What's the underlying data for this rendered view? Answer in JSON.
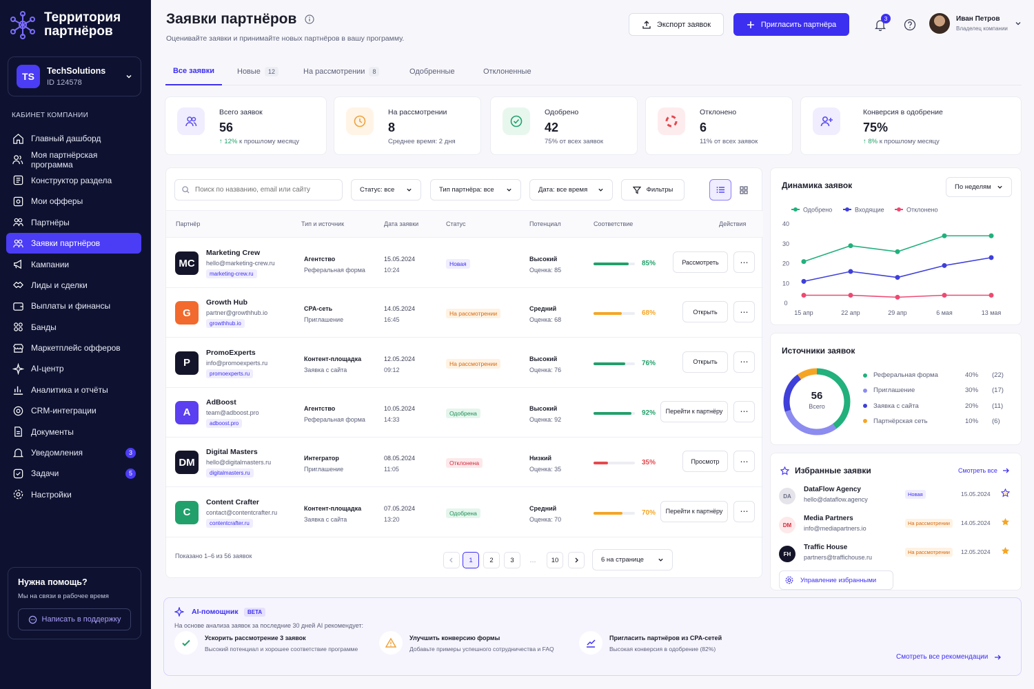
{
  "brand": {
    "line1": "Территория",
    "line2": "партнёров"
  },
  "company": {
    "initials": "TS",
    "name": "TechSolutions",
    "id": "ID 124578"
  },
  "sidebar": {
    "section_title": "КАБИНЕТ КОМПАНИИ",
    "items": [
      {
        "label": "Главный дашборд",
        "icon": "home-icon"
      },
      {
        "label": "Моя партнёрская программа",
        "icon": "users-icon"
      },
      {
        "label": "Конструктор раздела",
        "icon": "layout-icon"
      },
      {
        "label": "Мои офферы",
        "icon": "offer-icon"
      },
      {
        "label": "Партнёры",
        "icon": "partners-icon"
      },
      {
        "label": "Заявки партнёров",
        "icon": "applications-icon",
        "active": true
      },
      {
        "label": "Кампании",
        "icon": "megaphone-icon"
      },
      {
        "label": "Лиды и сделки",
        "icon": "handshake-icon"
      },
      {
        "label": "Выплаты и финансы",
        "icon": "wallet-icon"
      },
      {
        "label": "Банды",
        "icon": "grid-icon"
      },
      {
        "label": "Маркетплейс офферов",
        "icon": "store-icon"
      },
      {
        "label": "AI-центр",
        "icon": "sparkle-icon"
      },
      {
        "label": "Аналитика и отчёты",
        "icon": "chart-icon"
      },
      {
        "label": "CRM-интеграции",
        "icon": "crm-icon"
      },
      {
        "label": "Документы",
        "icon": "document-icon"
      },
      {
        "label": "Уведомления",
        "icon": "bell-icon",
        "badge": "3"
      },
      {
        "label": "Задачи",
        "icon": "tasks-icon",
        "badge": "5"
      },
      {
        "label": "Настройки",
        "icon": "settings-icon"
      }
    ]
  },
  "help": {
    "title": "Нужна помощь?",
    "subtitle": "Мы на связи в рабочее время",
    "button": "Написать в поддержку"
  },
  "header": {
    "title": "Заявки партнёров",
    "subtitle": "Оценивайте заявки и принимайте новых партнёров в вашу программу.",
    "export_label": "Экспорт заявок",
    "invite_label": "Пригласить партнёра",
    "notif_count": "3",
    "user_name": "Иван Петров",
    "user_role": "Владелец компании"
  },
  "tabs": [
    {
      "label": "Все заявки",
      "count": "",
      "active": true
    },
    {
      "label": "Новые",
      "count": "12"
    },
    {
      "label": "На рассмотрении",
      "count": "8"
    },
    {
      "label": "Одобренные",
      "count": ""
    },
    {
      "label": "Отклоненные",
      "count": ""
    }
  ],
  "stats": [
    {
      "label": "Всего заявок",
      "value": "56",
      "note_up": "↑ 12%",
      "note": " к прошлому месяцу",
      "icon": "users-icon",
      "color": "#5b4cf0",
      "bg": "#efedfe"
    },
    {
      "label": "На рассмотрении",
      "value": "8",
      "note_up": "",
      "note": "Среднее время:  2 дня",
      "icon": "clock-icon",
      "color": "#f0a23a",
      "bg": "#fff4e6"
    },
    {
      "label": "Одобрено",
      "value": "42",
      "note_up": "",
      "note": "75% от всех заявок",
      "icon": "check-circle-icon",
      "color": "#22a06b",
      "bg": "#e7f7ee"
    },
    {
      "label": "Отклонено",
      "value": "6",
      "note_up": "",
      "note": "11% от всех заявок",
      "icon": "reject-icon",
      "color": "#e5484d",
      "bg": "#fdecee"
    },
    {
      "label": "Конверсия в одобрение",
      "value": "75%",
      "note_up": "↑ 8%",
      "note": " к прошлому месяцу",
      "icon": "user-plus-icon",
      "color": "#5b4cf0",
      "bg": "#efedfe"
    }
  ],
  "filters": {
    "search_placeholder": "Поиск по названию, email или сайту",
    "status": "Статус: все",
    "partner_type": "Тип партнёра: все",
    "date": "Дата: все время",
    "filters_label": "Фильтры"
  },
  "table": {
    "headers": [
      "Партнёр",
      "Тип и источник",
      "Дата заявки",
      "Статус",
      "Потенциал",
      "Соответствие",
      "Действия"
    ],
    "rows": [
      {
        "initials": "MC",
        "color": "#14152a",
        "name": "Marketing Crew",
        "email": "hello@marketing-crew.ru",
        "domain": "marketing-crew.ru",
        "type": "Агентство",
        "source": "Реферальная форма",
        "date": "15.05.2024",
        "time": "10:24",
        "status": "Новая",
        "status_kind": "new",
        "potential": "Высокий",
        "score": "Оценка: 85",
        "match": 85,
        "match_label": "85%",
        "match_color": "#22a06b",
        "action": "Рассмотреть"
      },
      {
        "initials": "G",
        "color": "#f26a2d",
        "name": "Growth Hub",
        "email": "partner@growthhub.io",
        "domain": "growthhub.io",
        "type": "CPA-сеть",
        "source": "Приглашение",
        "date": "14.05.2024",
        "time": "16:45",
        "status": "На рассмотрении",
        "status_kind": "rev",
        "potential": "Средний",
        "score": "Оценка: 68",
        "match": 68,
        "match_label": "68%",
        "match_color": "#f5a524",
        "action": "Открыть"
      },
      {
        "initials": "P",
        "color": "#14152a",
        "name": "PromoExperts",
        "email": "info@promoexperts.ru",
        "domain": "promoexperts.ru",
        "type": "Контент-площадка",
        "source": "Заявка с сайта",
        "date": "12.05.2024",
        "time": "09:12",
        "status": "На рассмотрении",
        "status_kind": "rev",
        "potential": "Высокий",
        "score": "Оценка: 76",
        "match": 76,
        "match_label": "76%",
        "match_color": "#22a06b",
        "action": "Открыть"
      },
      {
        "initials": "A",
        "color": "#5b3ff0",
        "name": "AdBoost",
        "email": "team@adboost.pro",
        "domain": "adboost.pro",
        "type": "Агентство",
        "source": "Реферальная форма",
        "date": "10.05.2024",
        "time": "14:33",
        "status": "Одобрена",
        "status_kind": "ok",
        "potential": "Высокий",
        "score": "Оценка: 92",
        "match": 92,
        "match_label": "92%",
        "match_color": "#22a06b",
        "action": "Перейти к партнёру"
      },
      {
        "initials": "DM",
        "color": "#14152a",
        "name": "Digital Masters",
        "email": "hello@digitalmasters.ru",
        "domain": "digitalmasters.ru",
        "type": "Интегратор",
        "source": "Приглашение",
        "date": "08.05.2024",
        "time": "11:05",
        "status": "Отклонена",
        "status_kind": "rej",
        "potential": "Низкий",
        "score": "Оценка: 35",
        "match": 35,
        "match_label": "35%",
        "match_color": "#e5484d",
        "action": "Просмотр"
      },
      {
        "initials": "C",
        "color": "#22a06b",
        "name": "Content Crafter",
        "email": "contact@contentcrafter.ru",
        "domain": "contentcrafter.ru",
        "type": "Контент-площадка",
        "source": "Заявка с сайта",
        "date": "07.05.2024",
        "time": "13:20",
        "status": "Одобрена",
        "status_kind": "ok",
        "potential": "Средний",
        "score": "Оценка: 70",
        "match": 70,
        "match_label": "70%",
        "match_color": "#f5a524",
        "action": "Перейти к партнёру"
      }
    ],
    "footer": "Показано 1–6 из 56 заявок",
    "pages": [
      "1",
      "2",
      "3",
      "…",
      "10"
    ],
    "per_page": "6 на странице"
  },
  "dynamics": {
    "title": "Динамика заявок",
    "period": "По неделям",
    "chart_data": {
      "type": "line",
      "categories": [
        "15 апр",
        "22 апр",
        "29 апр",
        "6 мая",
        "13 мая"
      ],
      "series": [
        {
          "name": "Одобрено",
          "color": "#22b07d",
          "values": [
            21,
            29,
            26,
            34,
            34
          ]
        },
        {
          "name": "Входящие",
          "color": "#3f3fd9",
          "values": [
            11,
            16,
            13,
            19,
            23
          ]
        },
        {
          "name": "Отклонено",
          "color": "#ec4a72",
          "values": [
            4,
            4,
            3,
            4,
            4
          ]
        }
      ],
      "ylim": [
        0,
        40
      ],
      "yticks": [
        "0",
        "10",
        "20",
        "30",
        "40"
      ],
      "grid": false,
      "legend": "top"
    }
  },
  "sources": {
    "title": "Источники заявок",
    "total": "56",
    "total_label": "Всего",
    "items": [
      {
        "label": "Реферальная форма",
        "pct": "40%",
        "count": "(22)",
        "value": 40,
        "color": "#22b07d"
      },
      {
        "label": "Приглашение",
        "pct": "30%",
        "count": "(17)",
        "value": 30,
        "color": "#8b8bf0"
      },
      {
        "label": "Заявка с сайта",
        "pct": "20%",
        "count": "(11)",
        "value": 20,
        "color": "#3f3fd9"
      },
      {
        "label": "Партнёрская сеть",
        "pct": "10%",
        "count": "(6)",
        "value": 10,
        "color": "#f5a524"
      }
    ]
  },
  "favorites": {
    "title": "Избранные заявки",
    "see_all": "Смотреть все",
    "items": [
      {
        "initials": "DA",
        "name": "DataFlow Agency",
        "email": "hello@dataflow.agency",
        "status": "Новая",
        "status_kind": "new",
        "date": "15.05.2024",
        "starred": false
      },
      {
        "initials": "DM",
        "name": "Media Partners",
        "email": "info@mediapartners.io",
        "status": "На рассмотрении",
        "status_kind": "rev",
        "date": "14.05.2024",
        "starred": true
      },
      {
        "initials": "FH",
        "name": "Traffic House",
        "email": "partners@traffichouse.ru",
        "status": "На рассмотрении",
        "status_kind": "rev",
        "date": "12.05.2024",
        "starred": true
      }
    ],
    "manage": "Управление избранными"
  },
  "ai": {
    "title": "AI-помощник",
    "beta": "BETA",
    "intro": "На основе анализа заявок за последние 30 дней AI рекомендует:",
    "recs": [
      {
        "title": "Ускорить рассмотрение 3 заявок",
        "desc": "Высокий потенциал и хорошее соответствие программе",
        "icon": "check-icon"
      },
      {
        "title": "Улучшить конверсию формы",
        "desc": "Добавьте примеры успешного сотрудничества и FAQ",
        "icon": "warning-icon"
      },
      {
        "title": "Пригласить партнёров из CPA-сетей",
        "desc": "Высокая конверсия в одобрение (82%)",
        "icon": "chart-icon"
      }
    ],
    "see_all": "Смотреть все рекомендации"
  }
}
